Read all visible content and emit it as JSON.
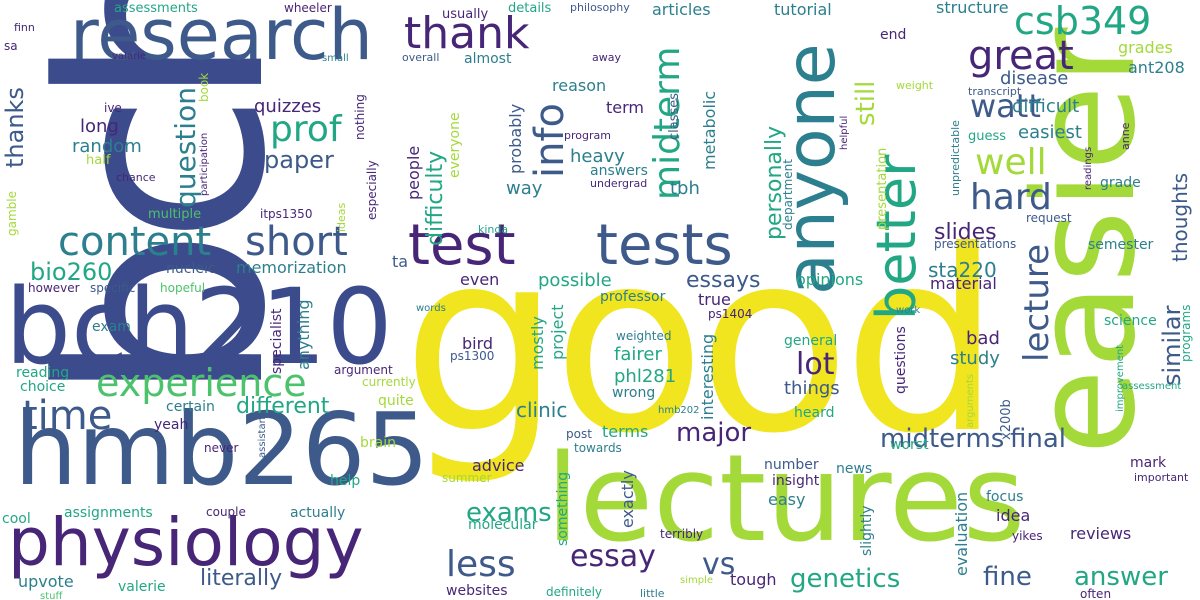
{
  "cloud": {
    "background": "#ffffff",
    "palette": {
      "indigo": "#3b4b8c",
      "slate": "#3d5a8a",
      "teal": "#2c7f8e",
      "sea": "#22a785",
      "green": "#4cc26c",
      "lime": "#a4d93a",
      "yellow": "#f0e51e",
      "purple": "#482677"
    },
    "words": [
      {
        "text": "bch311",
        "color": "indigo"
      },
      {
        "text": "good",
        "color": "yellow"
      },
      {
        "text": "easier",
        "color": "lime"
      },
      {
        "text": "lectures",
        "color": "lime"
      },
      {
        "text": "bch210",
        "color": "indigo"
      },
      {
        "text": "hmb265",
        "color": "slate"
      },
      {
        "text": "physiology",
        "color": "purple"
      },
      {
        "text": "research",
        "color": "slate"
      },
      {
        "text": "anyone",
        "color": "teal"
      },
      {
        "text": "test",
        "color": "purple"
      },
      {
        "text": "tests",
        "color": "slate"
      },
      {
        "text": "better",
        "color": "sea"
      },
      {
        "text": "thank",
        "color": "purple"
      },
      {
        "text": "csb349",
        "color": "sea"
      },
      {
        "text": "great",
        "color": "purple"
      },
      {
        "text": "content",
        "color": "teal"
      },
      {
        "text": "short",
        "color": "slate"
      },
      {
        "text": "experience",
        "color": "green"
      },
      {
        "text": "time",
        "color": "slate"
      },
      {
        "text": "prof",
        "color": "sea"
      },
      {
        "text": "info",
        "color": "slate"
      },
      {
        "text": "midterm",
        "color": "sea"
      },
      {
        "text": "watt",
        "color": "slate"
      },
      {
        "text": "well",
        "color": "lime"
      },
      {
        "text": "hard",
        "color": "slate"
      },
      {
        "text": "lecture",
        "color": "slate"
      },
      {
        "text": "question",
        "color": "teal"
      },
      {
        "text": "paper",
        "color": "slate"
      },
      {
        "text": "thanks",
        "color": "slate"
      },
      {
        "text": "still",
        "color": "lime"
      },
      {
        "text": "similar",
        "color": "slate"
      },
      {
        "text": "thoughts",
        "color": "slate"
      },
      {
        "text": "less",
        "color": "slate"
      },
      {
        "text": "essay",
        "color": "purple"
      },
      {
        "text": "vs",
        "color": "slate"
      },
      {
        "text": "exams",
        "color": "sea"
      },
      {
        "text": "major",
        "color": "purple"
      },
      {
        "text": "midterms",
        "color": "slate"
      },
      {
        "text": "final",
        "color": "slate"
      },
      {
        "text": "genetics",
        "color": "sea"
      },
      {
        "text": "answer",
        "color": "sea"
      },
      {
        "text": "fine",
        "color": "slate"
      },
      {
        "text": "literally",
        "color": "slate"
      },
      {
        "text": "lot",
        "color": "purple"
      },
      {
        "text": "different",
        "color": "sea"
      },
      {
        "text": "bio260",
        "color": "sea"
      },
      {
        "text": "essays",
        "color": "slate"
      },
      {
        "text": "slides",
        "color": "purple"
      },
      {
        "text": "sta220",
        "color": "teal"
      },
      {
        "text": "difficulty",
        "color": "sea"
      },
      {
        "text": "personally",
        "color": "sea"
      },
      {
        "text": "clinic",
        "color": "teal"
      },
      {
        "text": "quizzes",
        "color": "purple"
      },
      {
        "text": "long",
        "color": "purple"
      },
      {
        "text": "random",
        "color": "teal"
      },
      {
        "text": "memorization",
        "color": "teal"
      },
      {
        "text": "nucleic",
        "color": "slate"
      },
      {
        "text": "heavy",
        "color": "teal"
      },
      {
        "text": "disease",
        "color": "slate"
      },
      {
        "text": "difficult",
        "color": "teal"
      },
      {
        "text": "easiest",
        "color": "teal"
      },
      {
        "text": "grades",
        "color": "lime"
      },
      {
        "text": "ant208",
        "color": "teal"
      },
      {
        "text": "structure",
        "color": "teal"
      },
      {
        "text": "articles",
        "color": "teal"
      },
      {
        "text": "tutorial",
        "color": "teal"
      },
      {
        "text": "reason",
        "color": "teal"
      },
      {
        "text": "term",
        "color": "purple"
      },
      {
        "text": "probably",
        "color": "slate"
      },
      {
        "text": "people",
        "color": "purple"
      },
      {
        "text": "way",
        "color": "teal"
      },
      {
        "text": "metabolic",
        "color": "teal"
      },
      {
        "text": "tbh",
        "color": "teal"
      },
      {
        "text": "possible",
        "color": "sea"
      },
      {
        "text": "even",
        "color": "purple"
      },
      {
        "text": "true",
        "color": "purple"
      },
      {
        "text": "bird",
        "color": "purple"
      },
      {
        "text": "fairer",
        "color": "sea"
      },
      {
        "text": "phl281",
        "color": "sea"
      },
      {
        "text": "wrong",
        "color": "teal"
      },
      {
        "text": "mostly",
        "color": "sea"
      },
      {
        "text": "project",
        "color": "sea"
      },
      {
        "text": "interesting",
        "color": "teal"
      },
      {
        "text": "terms",
        "color": "sea"
      },
      {
        "text": "advice",
        "color": "purple"
      },
      {
        "text": "easy",
        "color": "teal"
      },
      {
        "text": "tough",
        "color": "purple"
      },
      {
        "text": "exactly",
        "color": "slate"
      },
      {
        "text": "things",
        "color": "slate"
      },
      {
        "text": "heard",
        "color": "sea"
      },
      {
        "text": "general",
        "color": "sea"
      },
      {
        "text": "opinions",
        "color": "sea"
      },
      {
        "text": "material",
        "color": "purple"
      },
      {
        "text": "bad",
        "color": "purple"
      },
      {
        "text": "study",
        "color": "teal"
      },
      {
        "text": "questions",
        "color": "purple"
      },
      {
        "text": "worst",
        "color": "sea"
      },
      {
        "text": "semester",
        "color": "teal"
      },
      {
        "text": "grade",
        "color": "teal"
      },
      {
        "text": "ta",
        "color": "slate"
      },
      {
        "text": "exam",
        "color": "teal"
      },
      {
        "text": "however",
        "color": "purple"
      },
      {
        "text": "specific",
        "color": "slate"
      },
      {
        "text": "hopeful",
        "color": "green"
      },
      {
        "text": "reading",
        "color": "sea"
      },
      {
        "text": "choice",
        "color": "sea"
      },
      {
        "text": "certain",
        "color": "teal"
      },
      {
        "text": "yeah",
        "color": "purple"
      },
      {
        "text": "never",
        "color": "purple"
      },
      {
        "text": "cool",
        "color": "sea"
      },
      {
        "text": "assignments",
        "color": "sea"
      },
      {
        "text": "couple",
        "color": "purple"
      },
      {
        "text": "actually",
        "color": "teal"
      },
      {
        "text": "help",
        "color": "sea"
      },
      {
        "text": "upvote",
        "color": "teal"
      },
      {
        "text": "valerie",
        "color": "sea"
      },
      {
        "text": "stuff",
        "color": "green"
      },
      {
        "text": "websites",
        "color": "purple"
      },
      {
        "text": "definitely",
        "color": "sea"
      },
      {
        "text": "molecular",
        "color": "sea"
      },
      {
        "text": "summer",
        "color": "lime"
      },
      {
        "text": "brain",
        "color": "lime"
      },
      {
        "text": "quite",
        "color": "lime"
      },
      {
        "text": "anything",
        "color": "teal"
      },
      {
        "text": "specialist",
        "color": "purple"
      },
      {
        "text": "argument",
        "color": "purple"
      },
      {
        "text": "currently",
        "color": "lime"
      },
      {
        "text": "ps1300",
        "color": "slate"
      },
      {
        "text": "ps1404",
        "color": "purple"
      },
      {
        "text": "weighted",
        "color": "teal"
      },
      {
        "text": "professor",
        "color": "teal"
      },
      {
        "text": "words",
        "color": "teal"
      },
      {
        "text": "post",
        "color": "slate"
      },
      {
        "text": "towards",
        "color": "teal"
      },
      {
        "text": "hmb202",
        "color": "teal"
      },
      {
        "text": "number",
        "color": "slate"
      },
      {
        "text": "news",
        "color": "teal"
      },
      {
        "text": "insight",
        "color": "purple"
      },
      {
        "text": "evaluation",
        "color": "teal"
      },
      {
        "text": "focus",
        "color": "teal"
      },
      {
        "text": "idea",
        "color": "purple"
      },
      {
        "text": "reviews",
        "color": "purple"
      },
      {
        "text": "mark",
        "color": "purple"
      },
      {
        "text": "important",
        "color": "purple"
      },
      {
        "text": "yikes",
        "color": "purple"
      },
      {
        "text": "terribly",
        "color": "purple"
      },
      {
        "text": "slightly",
        "color": "teal"
      },
      {
        "text": "something",
        "color": "sea"
      },
      {
        "text": "simple",
        "color": "lime"
      },
      {
        "text": "little",
        "color": "teal"
      },
      {
        "text": "often",
        "color": "purple"
      },
      {
        "text": "science",
        "color": "sea"
      },
      {
        "text": "assessment",
        "color": "sea"
      },
      {
        "text": "improvement",
        "color": "sea"
      },
      {
        "text": "arguments",
        "color": "lime"
      },
      {
        "text": "x200b",
        "color": "slate"
      },
      {
        "text": "work",
        "color": "teal"
      },
      {
        "text": "programs",
        "color": "sea"
      },
      {
        "text": "presentations",
        "color": "slate"
      },
      {
        "text": "request",
        "color": "slate"
      },
      {
        "text": "anne",
        "color": "purple"
      },
      {
        "text": "readings",
        "color": "purple"
      },
      {
        "text": "unpredictable",
        "color": "teal"
      },
      {
        "text": "guess",
        "color": "sea"
      },
      {
        "text": "weight",
        "color": "lime"
      },
      {
        "text": "transcript",
        "color": "slate"
      },
      {
        "text": "helpful",
        "color": "purple"
      },
      {
        "text": "presentation",
        "color": "lime"
      },
      {
        "text": "department",
        "color": "teal"
      },
      {
        "text": "program",
        "color": "purple"
      },
      {
        "text": "undergrad",
        "color": "purple"
      },
      {
        "text": "answers",
        "color": "teal"
      },
      {
        "text": "classes",
        "color": "slate"
      },
      {
        "text": "almost",
        "color": "teal"
      },
      {
        "text": "away",
        "color": "purple"
      },
      {
        "text": "overall",
        "color": "slate"
      },
      {
        "text": "philosophy",
        "color": "slate"
      },
      {
        "text": "details",
        "color": "sea"
      },
      {
        "text": "usually",
        "color": "purple"
      },
      {
        "text": "end",
        "color": "purple"
      },
      {
        "text": "assessments",
        "color": "sea"
      },
      {
        "text": "wheeler",
        "color": "purple"
      },
      {
        "text": "small",
        "color": "teal"
      },
      {
        "text": "nothing",
        "color": "purple"
      },
      {
        "text": "especially",
        "color": "purple"
      },
      {
        "text": "ideas",
        "color": "lime"
      },
      {
        "text": "itps1350",
        "color": "purple"
      },
      {
        "text": "book",
        "color": "lime"
      },
      {
        "text": "participation",
        "color": "purple"
      },
      {
        "text": "ive",
        "color": "purple"
      },
      {
        "text": "half",
        "color": "lime"
      },
      {
        "text": "chance",
        "color": "purple"
      },
      {
        "text": "multiple",
        "color": "green"
      },
      {
        "text": "gamble",
        "color": "lime"
      },
      {
        "text": "finn",
        "color": "purple"
      },
      {
        "text": "sa",
        "color": "purple"
      },
      {
        "text": "valarie",
        "color": "purple"
      },
      {
        "text": "everyone",
        "color": "lime"
      },
      {
        "text": "kinda",
        "color": "sea"
      },
      {
        "text": "assistant",
        "color": "slate"
      }
    ]
  }
}
